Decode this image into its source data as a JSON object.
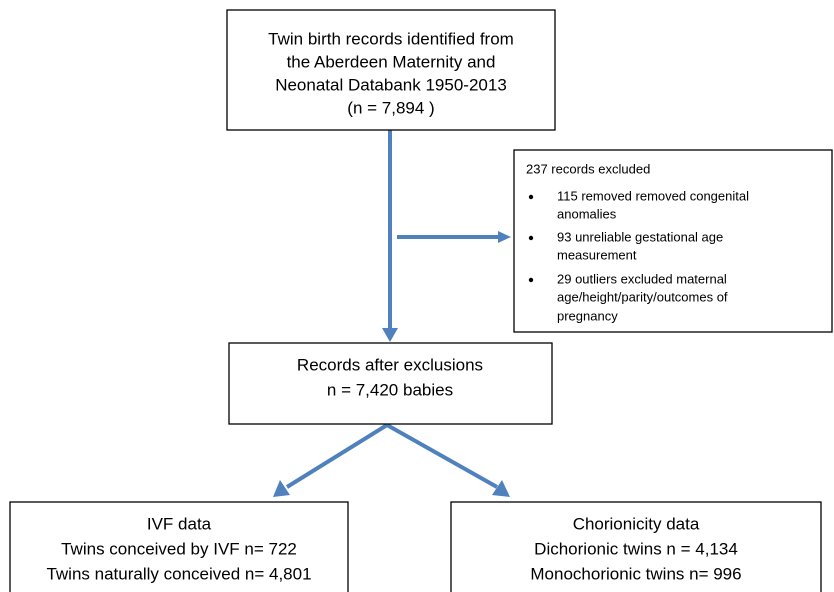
{
  "nodes": {
    "source": {
      "lines": [
        "Twin birth records identified from",
        "the Aberdeen Maternity and",
        "Neonatal Databank 1950-2013",
        "(n =  7,894 )"
      ]
    },
    "excluded": {
      "title": "237 records excluded",
      "items": [
        {
          "lines": [
            "115 removed removed congenital",
            "anomalies"
          ]
        },
        {
          "lines": [
            "93 unreliable gestational age",
            "measurement"
          ]
        },
        {
          "lines": [
            "29 outliers excluded maternal",
            "age/height/parity/outcomes of",
            "pregnancy"
          ]
        }
      ]
    },
    "after": {
      "lines": [
        "Records after exclusions",
        "n = 7,420 babies"
      ]
    },
    "ivf": {
      "lines": [
        "IVF data",
        "Twins conceived by IVF n= 722",
        "Twins naturally conceived n= 4,801"
      ]
    },
    "chorionicity": {
      "lines": [
        "Chorionicity data",
        "Dichorionic twins n = 4,134",
        "Monochorionic twins n= 996"
      ]
    }
  }
}
